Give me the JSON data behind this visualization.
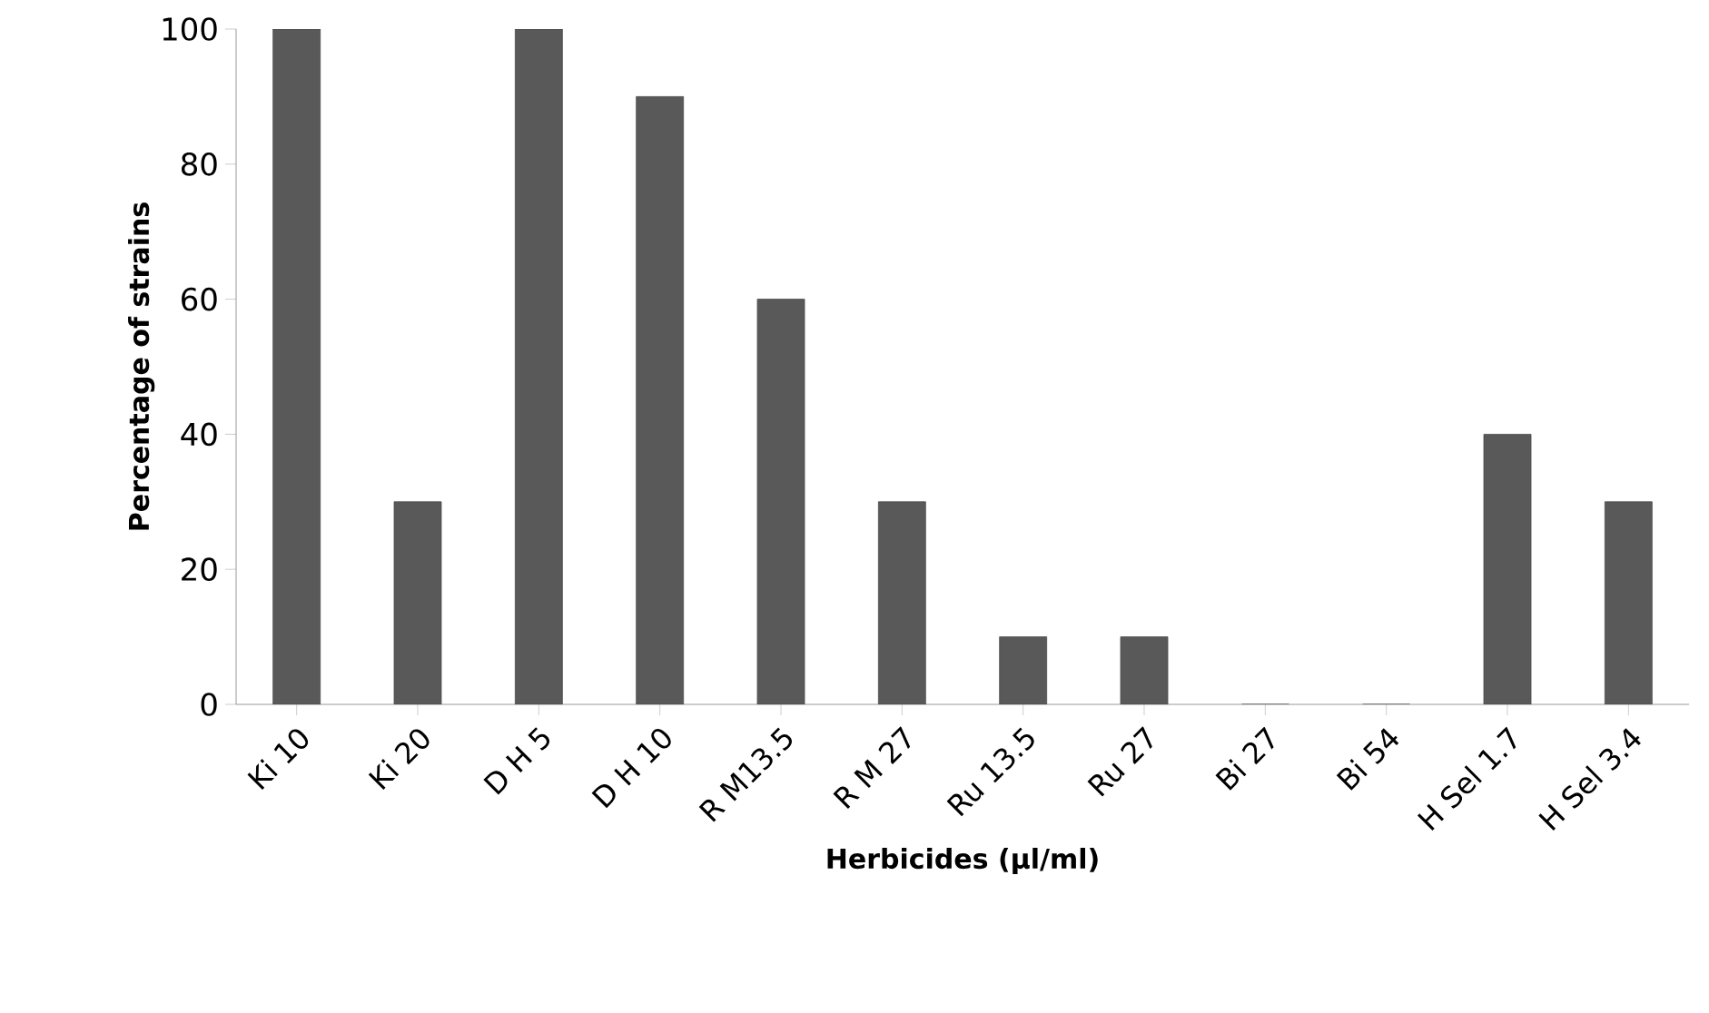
{
  "chart_data": {
    "type": "bar",
    "xlabel": "Herbicides (µl/ml)",
    "ylabel": "Percentage of strains",
    "categories": [
      "Ki 10",
      "Ki 20",
      "D H 5",
      "D H 10",
      "R M13.5",
      "R M 27",
      "Ru 13.5",
      "Ru 27",
      "Bi 27",
      "Bi 54",
      "H Sel 1.7",
      "H Sel 3.4"
    ],
    "values": [
      100,
      30,
      100,
      90,
      60,
      30,
      10,
      10,
      0,
      0,
      40,
      30
    ],
    "color": "#595959",
    "ylim": [
      0,
      100
    ],
    "yticks": [
      0,
      20,
      40,
      60,
      80,
      100
    ]
  }
}
